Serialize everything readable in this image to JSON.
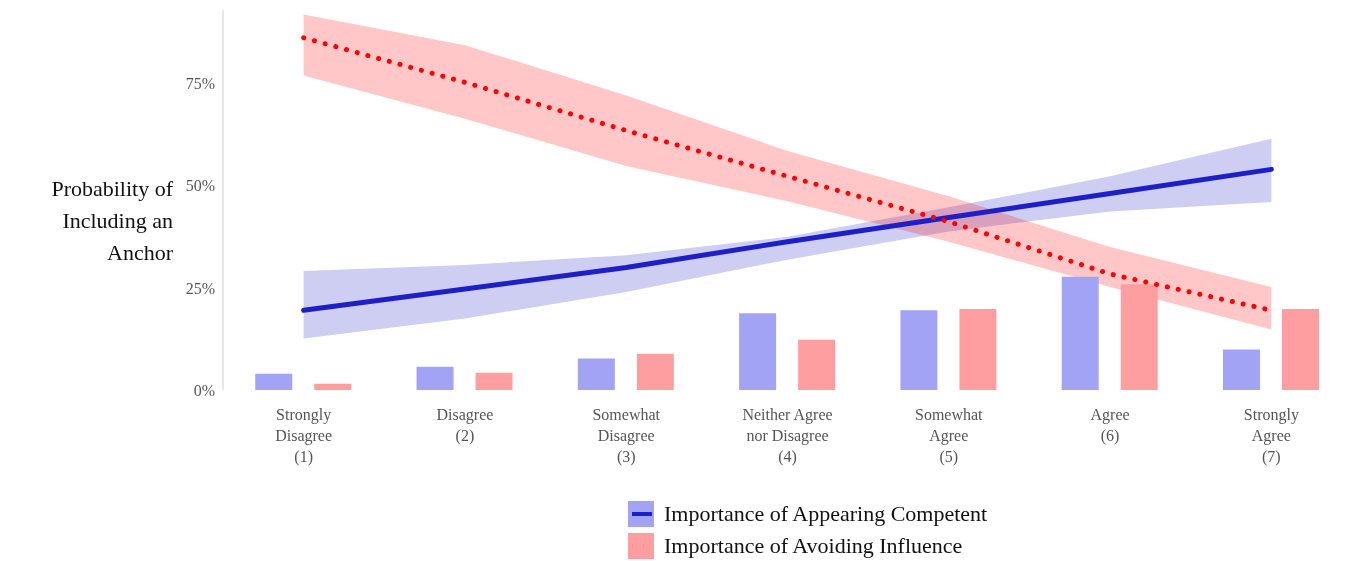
{
  "chart_data": {
    "type": "bar",
    "ylabel": "Probability of Including an Anchor",
    "categories": [
      "Strongly Disagree (1)",
      "Disagree (2)",
      "Somewhat Disagree (3)",
      "Neither Agree nor Disagree (4)",
      "Somewhat Agree (5)",
      "Agree (6)",
      "Strongly Agree (7)"
    ],
    "series": [
      {
        "name": "Importance of Appearing Competent",
        "color": "#a3a3f5",
        "values": [
          4.0,
          5.7,
          7.7,
          18.8,
          19.5,
          27.7,
          9.9
        ]
      },
      {
        "name": "Importance of Avoiding Influence",
        "color": "#ff9ea0",
        "values": [
          1.5,
          4.2,
          8.9,
          12.3,
          19.8,
          25.9,
          19.8
        ]
      },
      {
        "type": "line",
        "color": "#1f1fc8",
        "line_style": "solid",
        "values": [
          19.5,
          24.7,
          30,
          36.3,
          42.2,
          48.1,
          54
        ],
        "lower": [
          12.6,
          17.5,
          24,
          31.9,
          38.8,
          43.7,
          46
        ],
        "upper": [
          29.1,
          30.6,
          33,
          37.5,
          44.7,
          52.3,
          61.5
        ]
      },
      {
        "type": "line",
        "color": "#ff0000",
        "line_style": "dotted",
        "values": [
          86.2,
          75.3,
          63.5,
          52.3,
          41.2,
          28.4,
          19.5
        ],
        "lower": [
          77,
          66.4,
          54.8,
          46.2,
          36.3,
          25.2,
          14.8
        ],
        "upper": [
          91.9,
          84.4,
          72.1,
          58.5,
          47.4,
          35,
          25.2
        ]
      }
    ],
    "ylim": [
      0,
      93
    ],
    "yticks": [
      {
        "value": 0,
        "label": "0%"
      },
      {
        "value": 25,
        "label": "25%"
      },
      {
        "value": 50,
        "label": "50%"
      },
      {
        "value": 75,
        "label": "75%"
      }
    ],
    "grid": false,
    "legend": "bottom",
    "marker": "none"
  }
}
